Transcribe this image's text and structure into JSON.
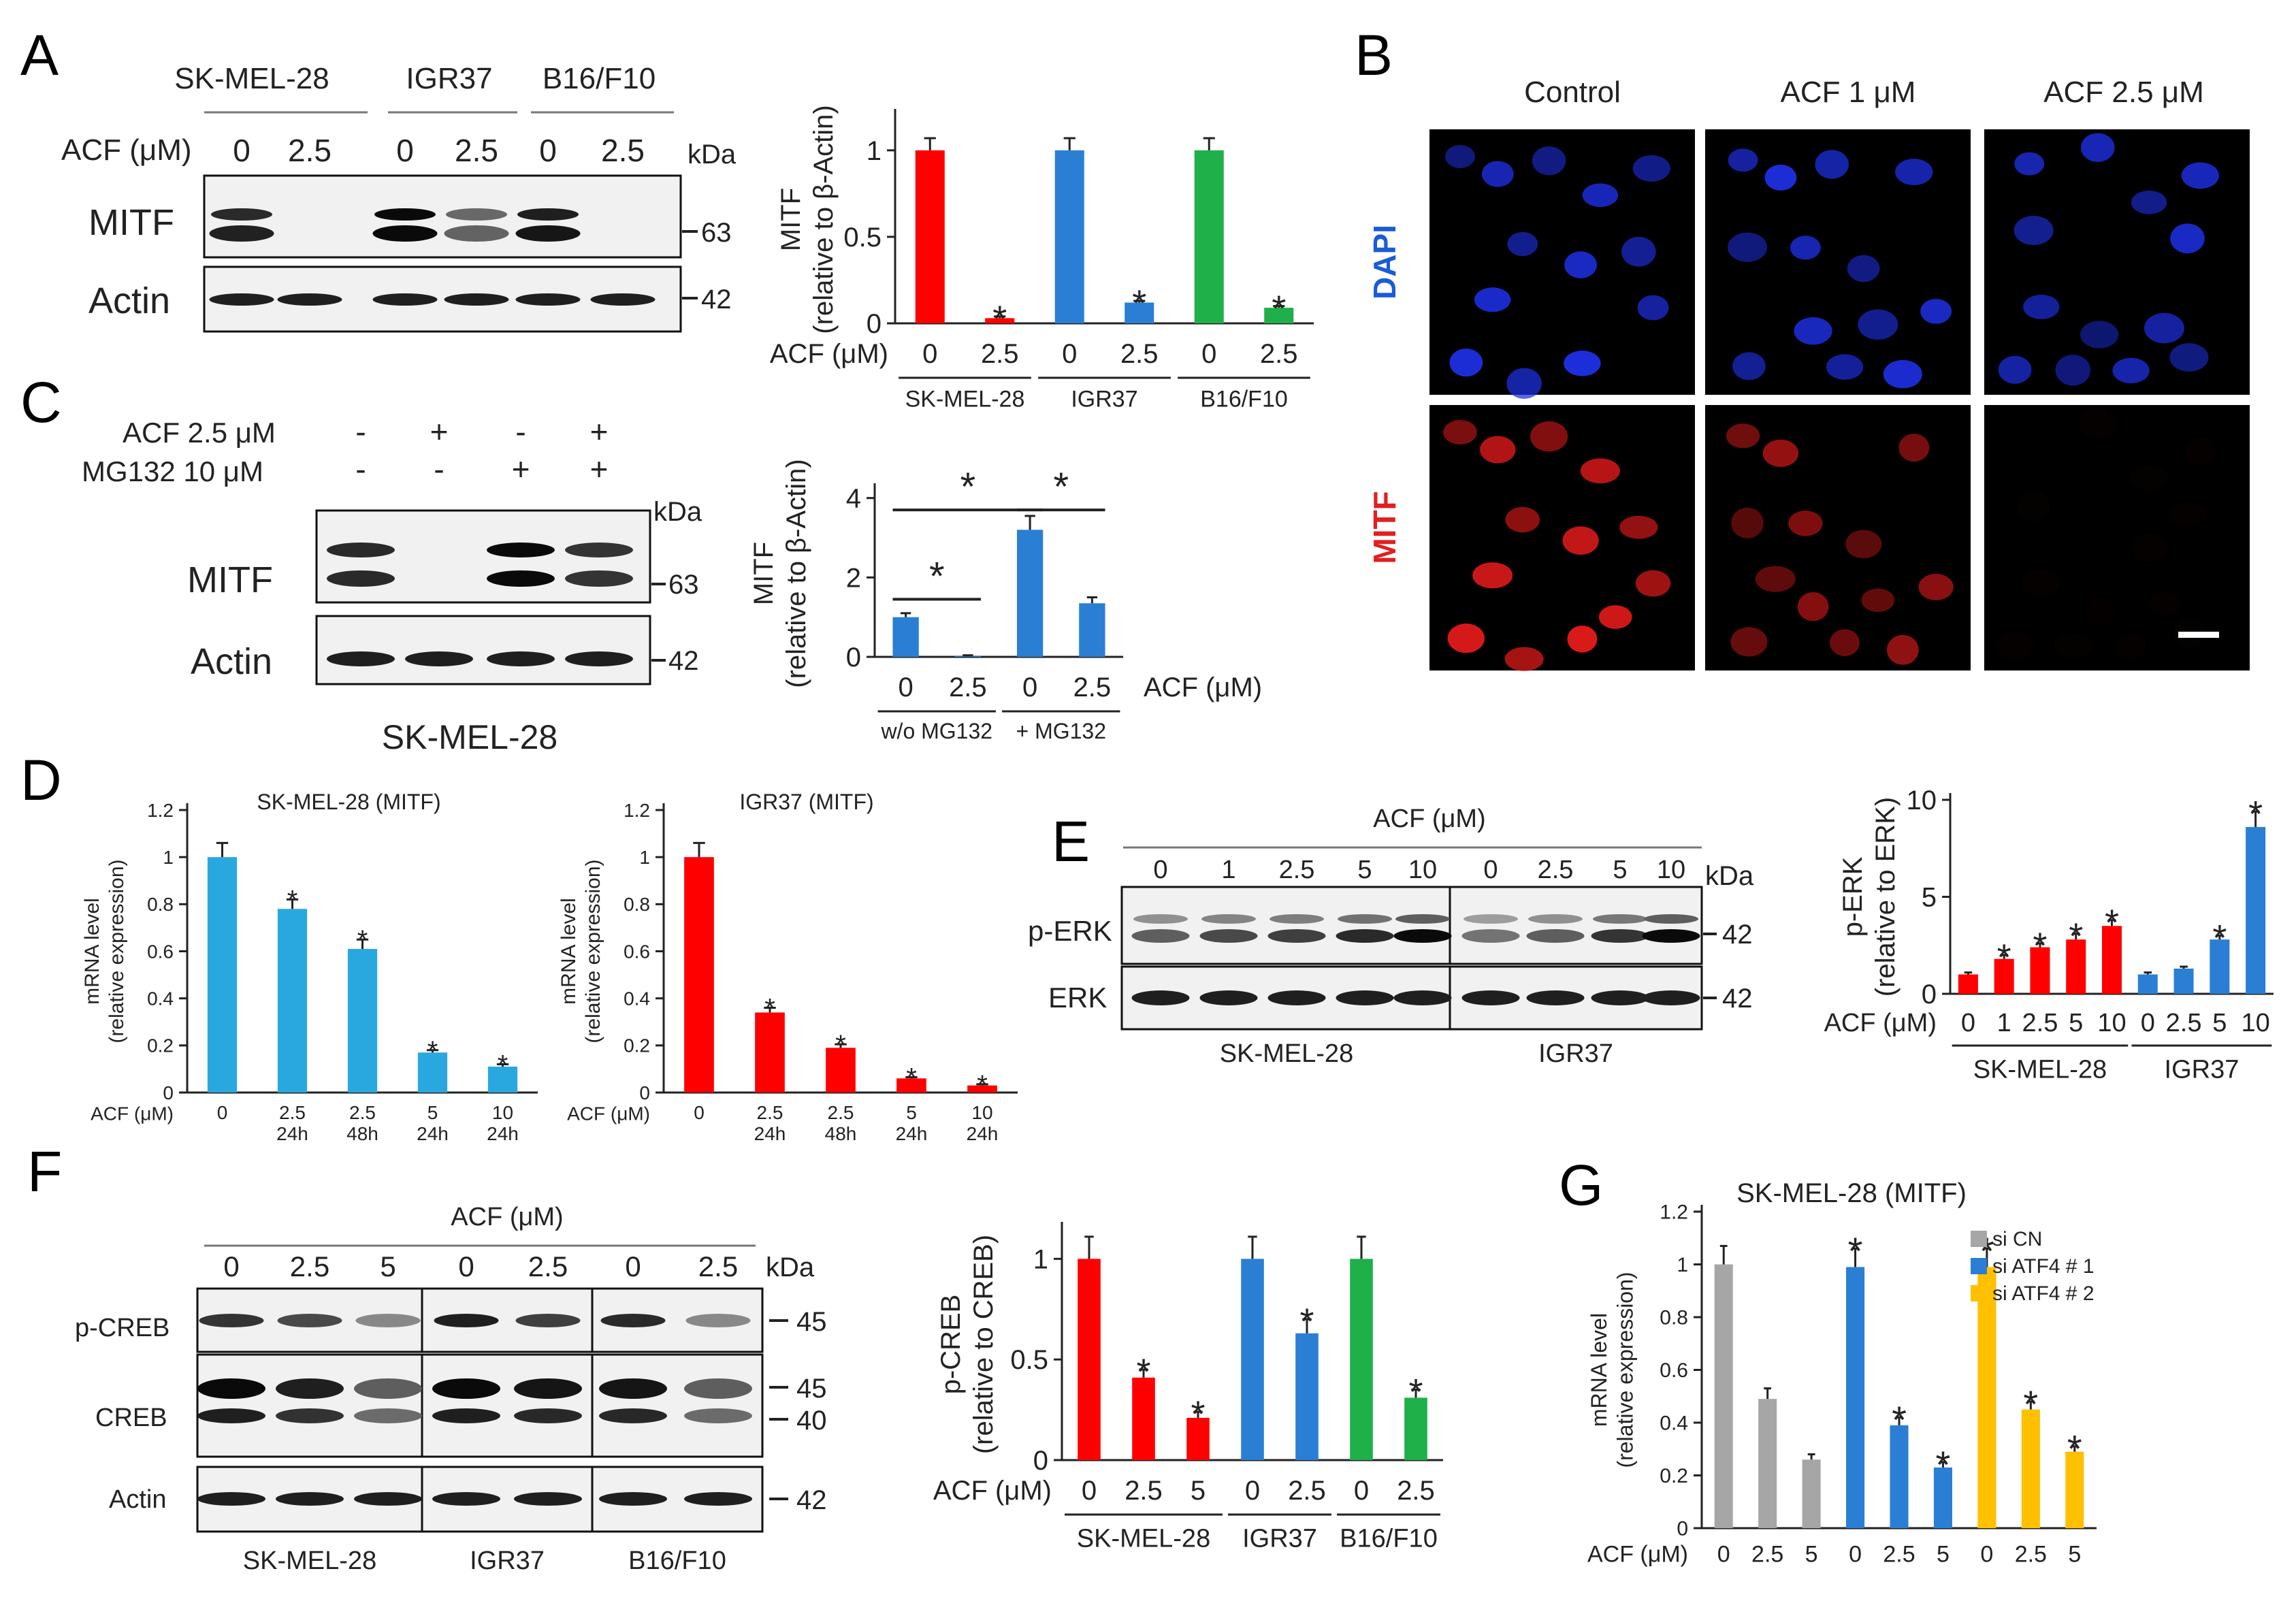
{
  "panels": {
    "A": {
      "label": "A",
      "blot": {
        "cell_lines": [
          "SK-MEL-28",
          "IGR37",
          "B16/F10"
        ],
        "treatment_label": "ACF (μM)",
        "lanes": [
          "0",
          "2.5",
          "0",
          "2.5",
          "0",
          "2.5"
        ],
        "kda": "kDa",
        "rows": [
          {
            "name": "MITF",
            "marker": "63",
            "intensity": [
              0.85,
              0.0,
              1.0,
              0.55,
              0.9,
              0.0
            ]
          },
          {
            "name": "Actin",
            "marker": "42",
            "intensity": [
              0.9,
              0.9,
              0.9,
              0.9,
              0.9,
              0.9
            ]
          }
        ]
      }
    },
    "B": {
      "label": "B",
      "columns": [
        "Control",
        "ACF 1 μM",
        "ACF 2.5 μM"
      ],
      "rows": [
        {
          "label": "DAPI",
          "color": "#1a5cd6",
          "cell_color": "#1d2fe0",
          "brightness": [
            1.0,
            1.0,
            0.9
          ]
        },
        {
          "label": "MITF",
          "color": "#e02020",
          "cell_color": "#e01a1a",
          "brightness": [
            1.0,
            0.7,
            0.03
          ]
        }
      ]
    },
    "C": {
      "label": "C",
      "treatments": [
        {
          "label": "ACF 2.5 μM",
          "signs": [
            "-",
            "+",
            "-",
            "+"
          ]
        },
        {
          "label": "MG132 10 μM",
          "signs": [
            "-",
            "-",
            "+",
            "+"
          ]
        }
      ],
      "kda": "kDa",
      "rows": [
        {
          "name": "MITF",
          "marker": "63",
          "intensity": [
            0.85,
            0.0,
            1.0,
            0.8
          ]
        },
        {
          "name": "Actin",
          "marker": "42",
          "intensity": [
            0.9,
            0.9,
            0.9,
            0.9
          ]
        }
      ],
      "cell_line": "SK-MEL-28"
    },
    "D": {
      "label": "D"
    },
    "E": {
      "label": "E",
      "blot": {
        "treatment_label": "ACF (μM)",
        "groups": [
          {
            "cell_line": "SK-MEL-28",
            "lanes": [
              "0",
              "1",
              "2.5",
              "5",
              "10"
            ]
          },
          {
            "cell_line": "IGR37",
            "lanes": [
              "0",
              "2.5",
              "5",
              "10"
            ]
          }
        ],
        "kda": "kDa",
        "rows": [
          {
            "name": "p-ERK",
            "marker": "42",
            "intensity": [
              [
                0.6,
                0.7,
                0.75,
                0.85,
                1.0
              ],
              [
                0.5,
                0.6,
                0.8,
                1.0
              ]
            ]
          },
          {
            "name": "ERK",
            "marker": "42",
            "intensity": [
              [
                0.9,
                0.9,
                0.9,
                0.9,
                0.9
              ],
              [
                0.9,
                0.9,
                0.9,
                0.9
              ]
            ]
          }
        ]
      }
    },
    "F": {
      "label": "F",
      "blot": {
        "treatment_label": "ACF (μM)",
        "groups": [
          {
            "cell_line": "SK-MEL-28",
            "lanes": [
              "0",
              "2.5",
              "5"
            ]
          },
          {
            "cell_line": "IGR37",
            "lanes": [
              "0",
              "2.5"
            ]
          },
          {
            "cell_line": "B16/F10",
            "lanes": [
              "0",
              "2.5"
            ]
          }
        ],
        "kda": "kDa",
        "rows": [
          {
            "name": "p-CREB",
            "markers": [
              "45"
            ],
            "intensity": [
              [
                0.8,
                0.7,
                0.4
              ],
              [
                0.9,
                0.75
              ],
              [
                0.85,
                0.4
              ]
            ]
          },
          {
            "name": "CREB",
            "markers": [
              "45",
              "40"
            ],
            "intensity": [
              [
                1.0,
                0.9,
                0.6
              ],
              [
                1.0,
                0.95
              ],
              [
                0.95,
                0.6
              ]
            ]
          },
          {
            "name": "Actin",
            "markers": [
              "42"
            ],
            "intensity": [
              [
                0.9,
                0.9,
                0.9
              ],
              [
                0.9,
                0.9
              ],
              [
                0.9,
                0.9
              ]
            ]
          }
        ]
      }
    },
    "G": {
      "label": "G"
    }
  },
  "chart_data": [
    {
      "id": "A",
      "type": "bar",
      "ylabel": [
        "MITF",
        "(relative to β-Actin)"
      ],
      "xprefix": "ACF (μM)",
      "categories": [
        "0",
        "2.5",
        "0",
        "2.5",
        "0",
        "2.5"
      ],
      "values": [
        1.0,
        0.03,
        1.0,
        0.12,
        1.0,
        0.09
      ],
      "errors": [
        0.07,
        0.01,
        0.07,
        0.01,
        0.07,
        0.01
      ],
      "colors": [
        "#ff0000",
        "#ff0000",
        "#2a7fd4",
        "#2a7fd4",
        "#1fb04a",
        "#1fb04a"
      ],
      "star": [
        false,
        true,
        false,
        true,
        false,
        true
      ],
      "yticks": [
        0,
        0.5,
        1
      ],
      "ylim": [
        0,
        1.2
      ],
      "groups": [
        {
          "label": "SK-MEL-28",
          "span": [
            0,
            1
          ]
        },
        {
          "label": "IGR37",
          "span": [
            2,
            3
          ]
        },
        {
          "label": "B16/F10",
          "span": [
            4,
            5
          ]
        }
      ]
    },
    {
      "id": "C",
      "type": "bar",
      "ylabel": [
        "MITF",
        "(relative to β-Actin)"
      ],
      "xsuffix": "ACF (μM)",
      "categories": [
        "0",
        "2.5",
        "0",
        "2.5"
      ],
      "values": [
        1.0,
        0.03,
        3.2,
        1.35
      ],
      "errors": [
        0.1,
        0.01,
        0.35,
        0.15
      ],
      "colors": [
        "#2a7fd4",
        "#2a7fd4",
        "#2a7fd4",
        "#2a7fd4"
      ],
      "star": [
        false,
        false,
        false,
        false
      ],
      "yticks": [
        0,
        2,
        4
      ],
      "ylim": [
        0,
        4.2
      ],
      "comparisons": [
        {
          "from": 0,
          "to": 1,
          "y": 1.45
        },
        {
          "from": 0,
          "to": 2,
          "y": 3.7
        },
        {
          "from": 2,
          "to": 3,
          "y": 3.7
        }
      ],
      "groups": [
        {
          "label": "w/o MG132",
          "span": [
            0,
            1
          ]
        },
        {
          "label": "+ MG132",
          "span": [
            2,
            3
          ]
        }
      ]
    },
    {
      "id": "D1",
      "type": "bar",
      "title": "SK-MEL-28 (MITF)",
      "ylabel": [
        "mRNA level",
        "(relative expression)"
      ],
      "xprefix": "ACF (μM)",
      "categories": [
        [
          "0",
          ""
        ],
        [
          "2.5",
          "24h"
        ],
        [
          "2.5",
          "48h"
        ],
        [
          "5",
          "24h"
        ],
        [
          "10",
          "24h"
        ]
      ],
      "values": [
        1.0,
        0.78,
        0.61,
        0.17,
        0.11
      ],
      "errors": [
        0.06,
        0.04,
        0.04,
        0.01,
        0.01
      ],
      "colors": [
        "#29a8e0",
        "#29a8e0",
        "#29a8e0",
        "#29a8e0",
        "#29a8e0"
      ],
      "star": [
        false,
        true,
        true,
        true,
        true
      ],
      "yticks": [
        0,
        0.2,
        0.4,
        0.6,
        0.8,
        1,
        1.2
      ],
      "ylim": [
        0,
        1.2
      ]
    },
    {
      "id": "D2",
      "type": "bar",
      "title": "IGR37 (MITF)",
      "ylabel": [
        "mRNA level",
        "(relative expression)"
      ],
      "xprefix": "ACF (μM)",
      "categories": [
        [
          "0",
          ""
        ],
        [
          "2.5",
          "24h"
        ],
        [
          "2.5",
          "48h"
        ],
        [
          "5",
          "24h"
        ],
        [
          "10",
          "24h"
        ]
      ],
      "values": [
        1.0,
        0.34,
        0.19,
        0.06,
        0.03
      ],
      "errors": [
        0.06,
        0.02,
        0.015,
        0.005,
        0.005
      ],
      "colors": [
        "#ff0000",
        "#ff0000",
        "#ff0000",
        "#ff0000",
        "#ff0000"
      ],
      "star": [
        false,
        true,
        true,
        true,
        true
      ],
      "yticks": [
        0,
        0.2,
        0.4,
        0.6,
        0.8,
        1,
        1.2
      ],
      "ylim": [
        0,
        1.2
      ]
    },
    {
      "id": "E",
      "type": "bar",
      "ylabel": [
        "p-ERK",
        "(relative to ERK)"
      ],
      "xprefix": "ACF (μM)",
      "categories": [
        "0",
        "1",
        "2.5",
        "5",
        "10",
        "0",
        "2.5",
        "5",
        "10"
      ],
      "values": [
        1.0,
        1.8,
        2.4,
        2.8,
        3.5,
        1.0,
        1.3,
        2.8,
        8.6
      ],
      "errors": [
        0.1,
        0.2,
        0.2,
        0.3,
        0.3,
        0.1,
        0.1,
        0.2,
        0.8
      ],
      "colors": [
        "#ff0000",
        "#ff0000",
        "#ff0000",
        "#ff0000",
        "#ff0000",
        "#2a7fd4",
        "#2a7fd4",
        "#2a7fd4",
        "#2a7fd4"
      ],
      "star": [
        false,
        true,
        true,
        true,
        true,
        false,
        false,
        true,
        true
      ],
      "yticks": [
        0,
        5,
        10
      ],
      "ylim": [
        0,
        10
      ],
      "groups": [
        {
          "label": "SK-MEL-28",
          "span": [
            0,
            4
          ]
        },
        {
          "label": "IGR37",
          "span": [
            5,
            8
          ]
        }
      ]
    },
    {
      "id": "F",
      "type": "bar",
      "ylabel": [
        "p-CREB",
        "(relative to CREB)"
      ],
      "xprefix": "ACF (μM)",
      "categories": [
        "0",
        "2.5",
        "5",
        "0",
        "2.5",
        "0",
        "2.5"
      ],
      "values": [
        1.0,
        0.41,
        0.21,
        1.0,
        0.63,
        1.0,
        0.31
      ],
      "errors": [
        0.11,
        0.04,
        0.03,
        0.11,
        0.07,
        0.11,
        0.04
      ],
      "colors": [
        "#ff0000",
        "#ff0000",
        "#ff0000",
        "#2a7fd4",
        "#2a7fd4",
        "#1fb04a",
        "#1fb04a"
      ],
      "star": [
        false,
        true,
        true,
        false,
        true,
        false,
        true
      ],
      "yticks": [
        0,
        0.5,
        1
      ],
      "ylim": [
        0,
        1.15
      ],
      "groups": [
        {
          "label": "SK-MEL-28",
          "span": [
            0,
            2
          ]
        },
        {
          "label": "IGR37",
          "span": [
            3,
            4
          ]
        },
        {
          "label": "B16/F10",
          "span": [
            5,
            6
          ]
        }
      ]
    },
    {
      "id": "G",
      "type": "bar",
      "title": "SK-MEL-28 (MITF)",
      "ylabel": [
        "mRNA level",
        "(relative expression)"
      ],
      "xprefix": "ACF (μM)",
      "categories": [
        "0",
        "2.5",
        "5",
        "0",
        "2.5",
        "5",
        "0",
        "2.5",
        "5"
      ],
      "values": [
        1.0,
        0.49,
        0.26,
        0.99,
        0.39,
        0.23,
        0.99,
        0.45,
        0.29
      ],
      "errors": [
        0.07,
        0.04,
        0.02,
        0.07,
        0.03,
        0.02,
        0.07,
        0.03,
        0.02
      ],
      "colors": [
        "#a6a6a6",
        "#a6a6a6",
        "#a6a6a6",
        "#2a7fd4",
        "#2a7fd4",
        "#2a7fd4",
        "#ffc000",
        "#ffc000",
        "#ffc000"
      ],
      "star": [
        false,
        false,
        false,
        true,
        true,
        true,
        true,
        true,
        true
      ],
      "yticks": [
        0,
        0.2,
        0.4,
        0.6,
        0.8,
        1,
        1.2
      ],
      "ylim": [
        0,
        1.2
      ],
      "series": [
        {
          "name": "si CN",
          "color": "#a6a6a6"
        },
        {
          "name": "si ATF4 # 1",
          "color": "#2a7fd4"
        },
        {
          "name": "si ATF4 # 2",
          "color": "#ffc000"
        }
      ],
      "legend": "top-right"
    }
  ]
}
